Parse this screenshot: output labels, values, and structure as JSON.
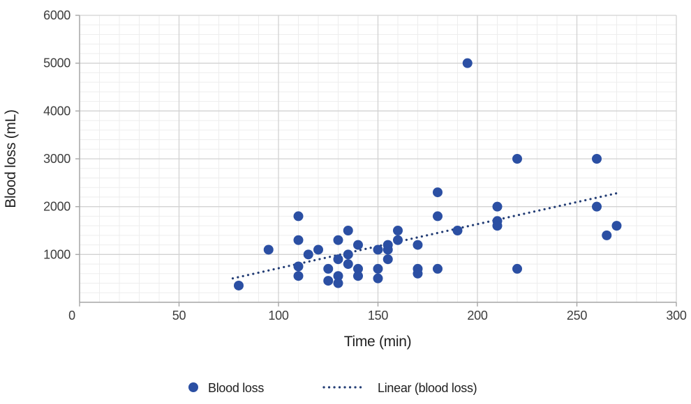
{
  "chart_data": {
    "type": "scatter",
    "title": "",
    "xlabel": "Time (min)",
    "ylabel": "Blood loss (mL)",
    "xlim": [
      0,
      300
    ],
    "ylim": [
      0,
      6000
    ],
    "xticks": [
      0,
      50,
      100,
      150,
      200,
      250,
      300
    ],
    "yticks": [
      1000,
      2000,
      3000,
      4000,
      5000,
      6000
    ],
    "x_minor_step": 10,
    "y_minor_step": 200,
    "grid": "major-and-minor",
    "legend_position": "bottom",
    "series": [
      {
        "name": "Blood loss",
        "type": "scatter",
        "color": "#2b4fa3",
        "points": [
          [
            80,
            350
          ],
          [
            95,
            1100
          ],
          [
            110,
            1800
          ],
          [
            110,
            1300
          ],
          [
            110,
            750
          ],
          [
            110,
            550
          ],
          [
            115,
            1000
          ],
          [
            120,
            1100
          ],
          [
            125,
            700
          ],
          [
            125,
            450
          ],
          [
            130,
            1300
          ],
          [
            130,
            900
          ],
          [
            130,
            550
          ],
          [
            130,
            400
          ],
          [
            135,
            1500
          ],
          [
            135,
            1000
          ],
          [
            135,
            800
          ],
          [
            140,
            1200
          ],
          [
            140,
            700
          ],
          [
            140,
            550
          ],
          [
            150,
            1100
          ],
          [
            150,
            700
          ],
          [
            150,
            500
          ],
          [
            155,
            1200
          ],
          [
            155,
            1100
          ],
          [
            155,
            900
          ],
          [
            160,
            1500
          ],
          [
            160,
            1300
          ],
          [
            170,
            1200
          ],
          [
            170,
            700
          ],
          [
            170,
            600
          ],
          [
            180,
            2300
          ],
          [
            180,
            1800
          ],
          [
            180,
            700
          ],
          [
            190,
            1500
          ],
          [
            195,
            5000
          ],
          [
            210,
            2000
          ],
          [
            210,
            1700
          ],
          [
            210,
            1600
          ],
          [
            220,
            3000
          ],
          [
            220,
            700
          ],
          [
            260,
            3000
          ],
          [
            260,
            2000
          ],
          [
            265,
            1400
          ],
          [
            270,
            1600
          ]
        ]
      },
      {
        "name": "Linear (blood loss)",
        "type": "trendline",
        "style": "dotted",
        "color": "#223c74",
        "start": [
          77,
          500
        ],
        "end": [
          270,
          2280
        ]
      }
    ]
  },
  "colors": {
    "point": "#2b4fa3",
    "trend": "#223c74",
    "major_grid": "#d2d2d2",
    "minor_grid": "#ededed",
    "axis_line": "#a6a6a6",
    "tick_text": "#3d3d3d",
    "title_text": "#1f1f1f"
  },
  "legend": {
    "items": [
      {
        "swatch": "dot",
        "label": "Blood loss"
      },
      {
        "swatch": "dotted-line",
        "label": "Linear (blood loss)"
      }
    ]
  }
}
